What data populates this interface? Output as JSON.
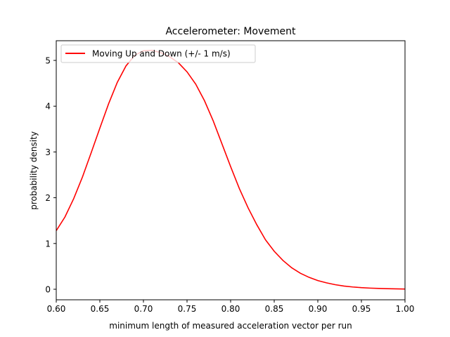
{
  "chart_data": {
    "type": "line",
    "title": "Accelerometer: Movement",
    "xlabel": "minimum length of measured acceleration vector per run",
    "ylabel": "probability density",
    "xlim": [
      0.6,
      1.0
    ],
    "ylim": [
      -0.23,
      5.43
    ],
    "xticks": [
      0.6,
      0.65,
      0.7,
      0.75,
      0.8,
      0.85,
      0.9,
      0.95,
      1.0
    ],
    "xtick_labels": [
      "0.60",
      "0.65",
      "0.70",
      "0.75",
      "0.80",
      "0.85",
      "0.90",
      "0.95",
      "1.00"
    ],
    "yticks": [
      0,
      1,
      2,
      3,
      4,
      5
    ],
    "ytick_labels": [
      "0",
      "1",
      "2",
      "3",
      "4",
      "5"
    ],
    "grid": false,
    "legend_position": "upper-left",
    "series": [
      {
        "name": "Moving Up and Down (+/- 1 m/s)",
        "color": "#ff0000",
        "x": [
          0.6,
          0.61,
          0.62,
          0.63,
          0.64,
          0.65,
          0.66,
          0.67,
          0.68,
          0.69,
          0.7,
          0.71,
          0.72,
          0.73,
          0.74,
          0.75,
          0.76,
          0.77,
          0.78,
          0.79,
          0.8,
          0.81,
          0.82,
          0.83,
          0.84,
          0.85,
          0.86,
          0.87,
          0.88,
          0.89,
          0.9,
          0.91,
          0.92,
          0.93,
          0.94,
          0.95,
          0.96,
          0.97,
          0.98,
          0.99,
          1.0
        ],
        "y": [
          1.28,
          1.58,
          1.98,
          2.45,
          2.98,
          3.52,
          4.05,
          4.52,
          4.88,
          5.11,
          5.21,
          5.22,
          5.17,
          5.08,
          4.95,
          4.75,
          4.48,
          4.12,
          3.68,
          3.18,
          2.68,
          2.2,
          1.78,
          1.41,
          1.08,
          0.83,
          0.63,
          0.47,
          0.35,
          0.26,
          0.19,
          0.14,
          0.1,
          0.07,
          0.05,
          0.035,
          0.025,
          0.018,
          0.012,
          0.008,
          0.005
        ]
      }
    ]
  }
}
